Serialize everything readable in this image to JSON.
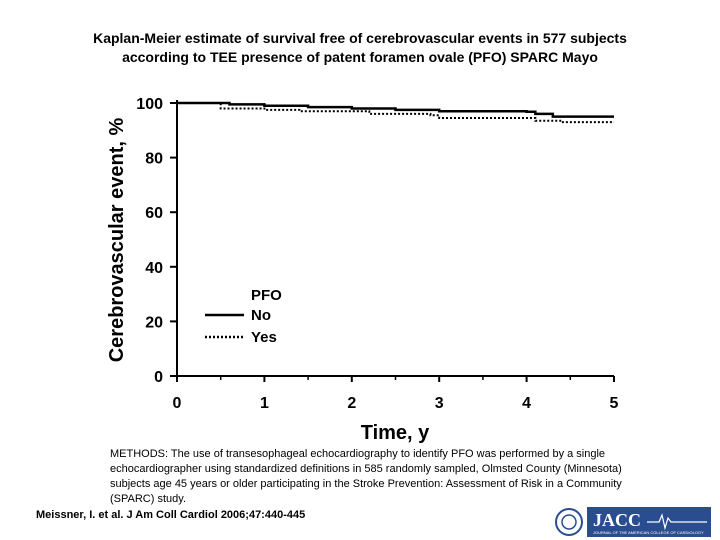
{
  "slide": {
    "title_line1": "Kaplan-Meier estimate of survival free of cerebrovascular events in 577 subjects",
    "title_line2": "according to TEE presence of patent foramen ovale (PFO) SPARC Mayo",
    "methods": "METHODS: The use of transesophageal echocardiography to identify PFO was performed by a single echocardiographer using standardized definitions in 585 randomly sampled, Olmsted County (Minnesota) subjects age 45 years or older participating in the Stroke Prevention: Assessment of Risk in a Community (SPARC) study.",
    "citation": "Meissner, I. et al. J Am Coll Cardiol 2006;47:440-445",
    "logo_text": "JACC",
    "logo_subtext": "JOURNAL OF THE AMERICAN COLLEGE OF CARDIOLOGY",
    "colors": {
      "logo_blue": "#2a4d8f",
      "ink": "#000000"
    }
  },
  "chart_data": {
    "type": "line",
    "xlabel": "Time, y",
    "ylabel": "Cerebrovascular event, %",
    "xlim": [
      0,
      5
    ],
    "ylim": [
      0,
      100
    ],
    "xticks": [
      0,
      1,
      2,
      3,
      4,
      5
    ],
    "yticks": [
      0,
      20,
      40,
      60,
      80,
      100
    ],
    "legend_title": "PFO",
    "legend_position": "bottom-left",
    "grid": false,
    "series": [
      {
        "name": "No",
        "style": "solid",
        "x": [
          0,
          0.3,
          0.6,
          1.0,
          1.5,
          2.0,
          2.5,
          3.0,
          3.5,
          4.0,
          4.1,
          4.3,
          5.0
        ],
        "y": [
          100,
          100,
          99.5,
          99,
          98.5,
          98,
          97.5,
          97,
          97,
          96.8,
          96,
          95,
          95
        ]
      },
      {
        "name": "Yes",
        "style": "dotted",
        "x": [
          0,
          0.3,
          0.5,
          1.0,
          1.4,
          2.0,
          2.2,
          2.9,
          3.0,
          4.0,
          4.1,
          4.4,
          5.0
        ],
        "y": [
          100,
          100,
          98,
          97.5,
          97,
          97,
          96,
          95.5,
          94.5,
          94.5,
          93.5,
          93,
          93
        ]
      }
    ]
  }
}
